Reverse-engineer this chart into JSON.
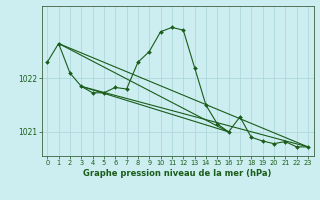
{
  "title": "Graphe pression niveau de la mer (hPa)",
  "background_color": "#cceef0",
  "grid_color": "#aad4d8",
  "line_color": "#1a5c1a",
  "xlim": [
    -0.5,
    23.5
  ],
  "ylim": [
    1020.55,
    1023.35
  ],
  "yticks": [
    1021,
    1022
  ],
  "xticks": [
    0,
    1,
    2,
    3,
    4,
    5,
    6,
    7,
    8,
    9,
    10,
    11,
    12,
    13,
    14,
    15,
    16,
    17,
    18,
    19,
    20,
    21,
    22,
    23
  ],
  "pressure": [
    1022.3,
    1022.65,
    1022.1,
    1021.85,
    1021.73,
    1021.73,
    1021.83,
    1021.8,
    1022.3,
    1022.5,
    1022.87,
    1022.95,
    1022.9,
    1022.2,
    1021.5,
    1021.15,
    1021.0,
    1021.28,
    1020.9,
    1020.83,
    1020.78,
    1020.82,
    1020.72,
    1020.72
  ],
  "trend_lines": [
    {
      "x0": 1,
      "x1": 23,
      "i0": 1,
      "i1": 23
    },
    {
      "x0": 3,
      "x1": 16,
      "i0": 3,
      "i1": 16
    },
    {
      "x0": 3,
      "x1": 23,
      "i0": 3,
      "i1": 23
    },
    {
      "x0": 1,
      "x1": 16,
      "i0": 1,
      "i1": 16
    }
  ]
}
